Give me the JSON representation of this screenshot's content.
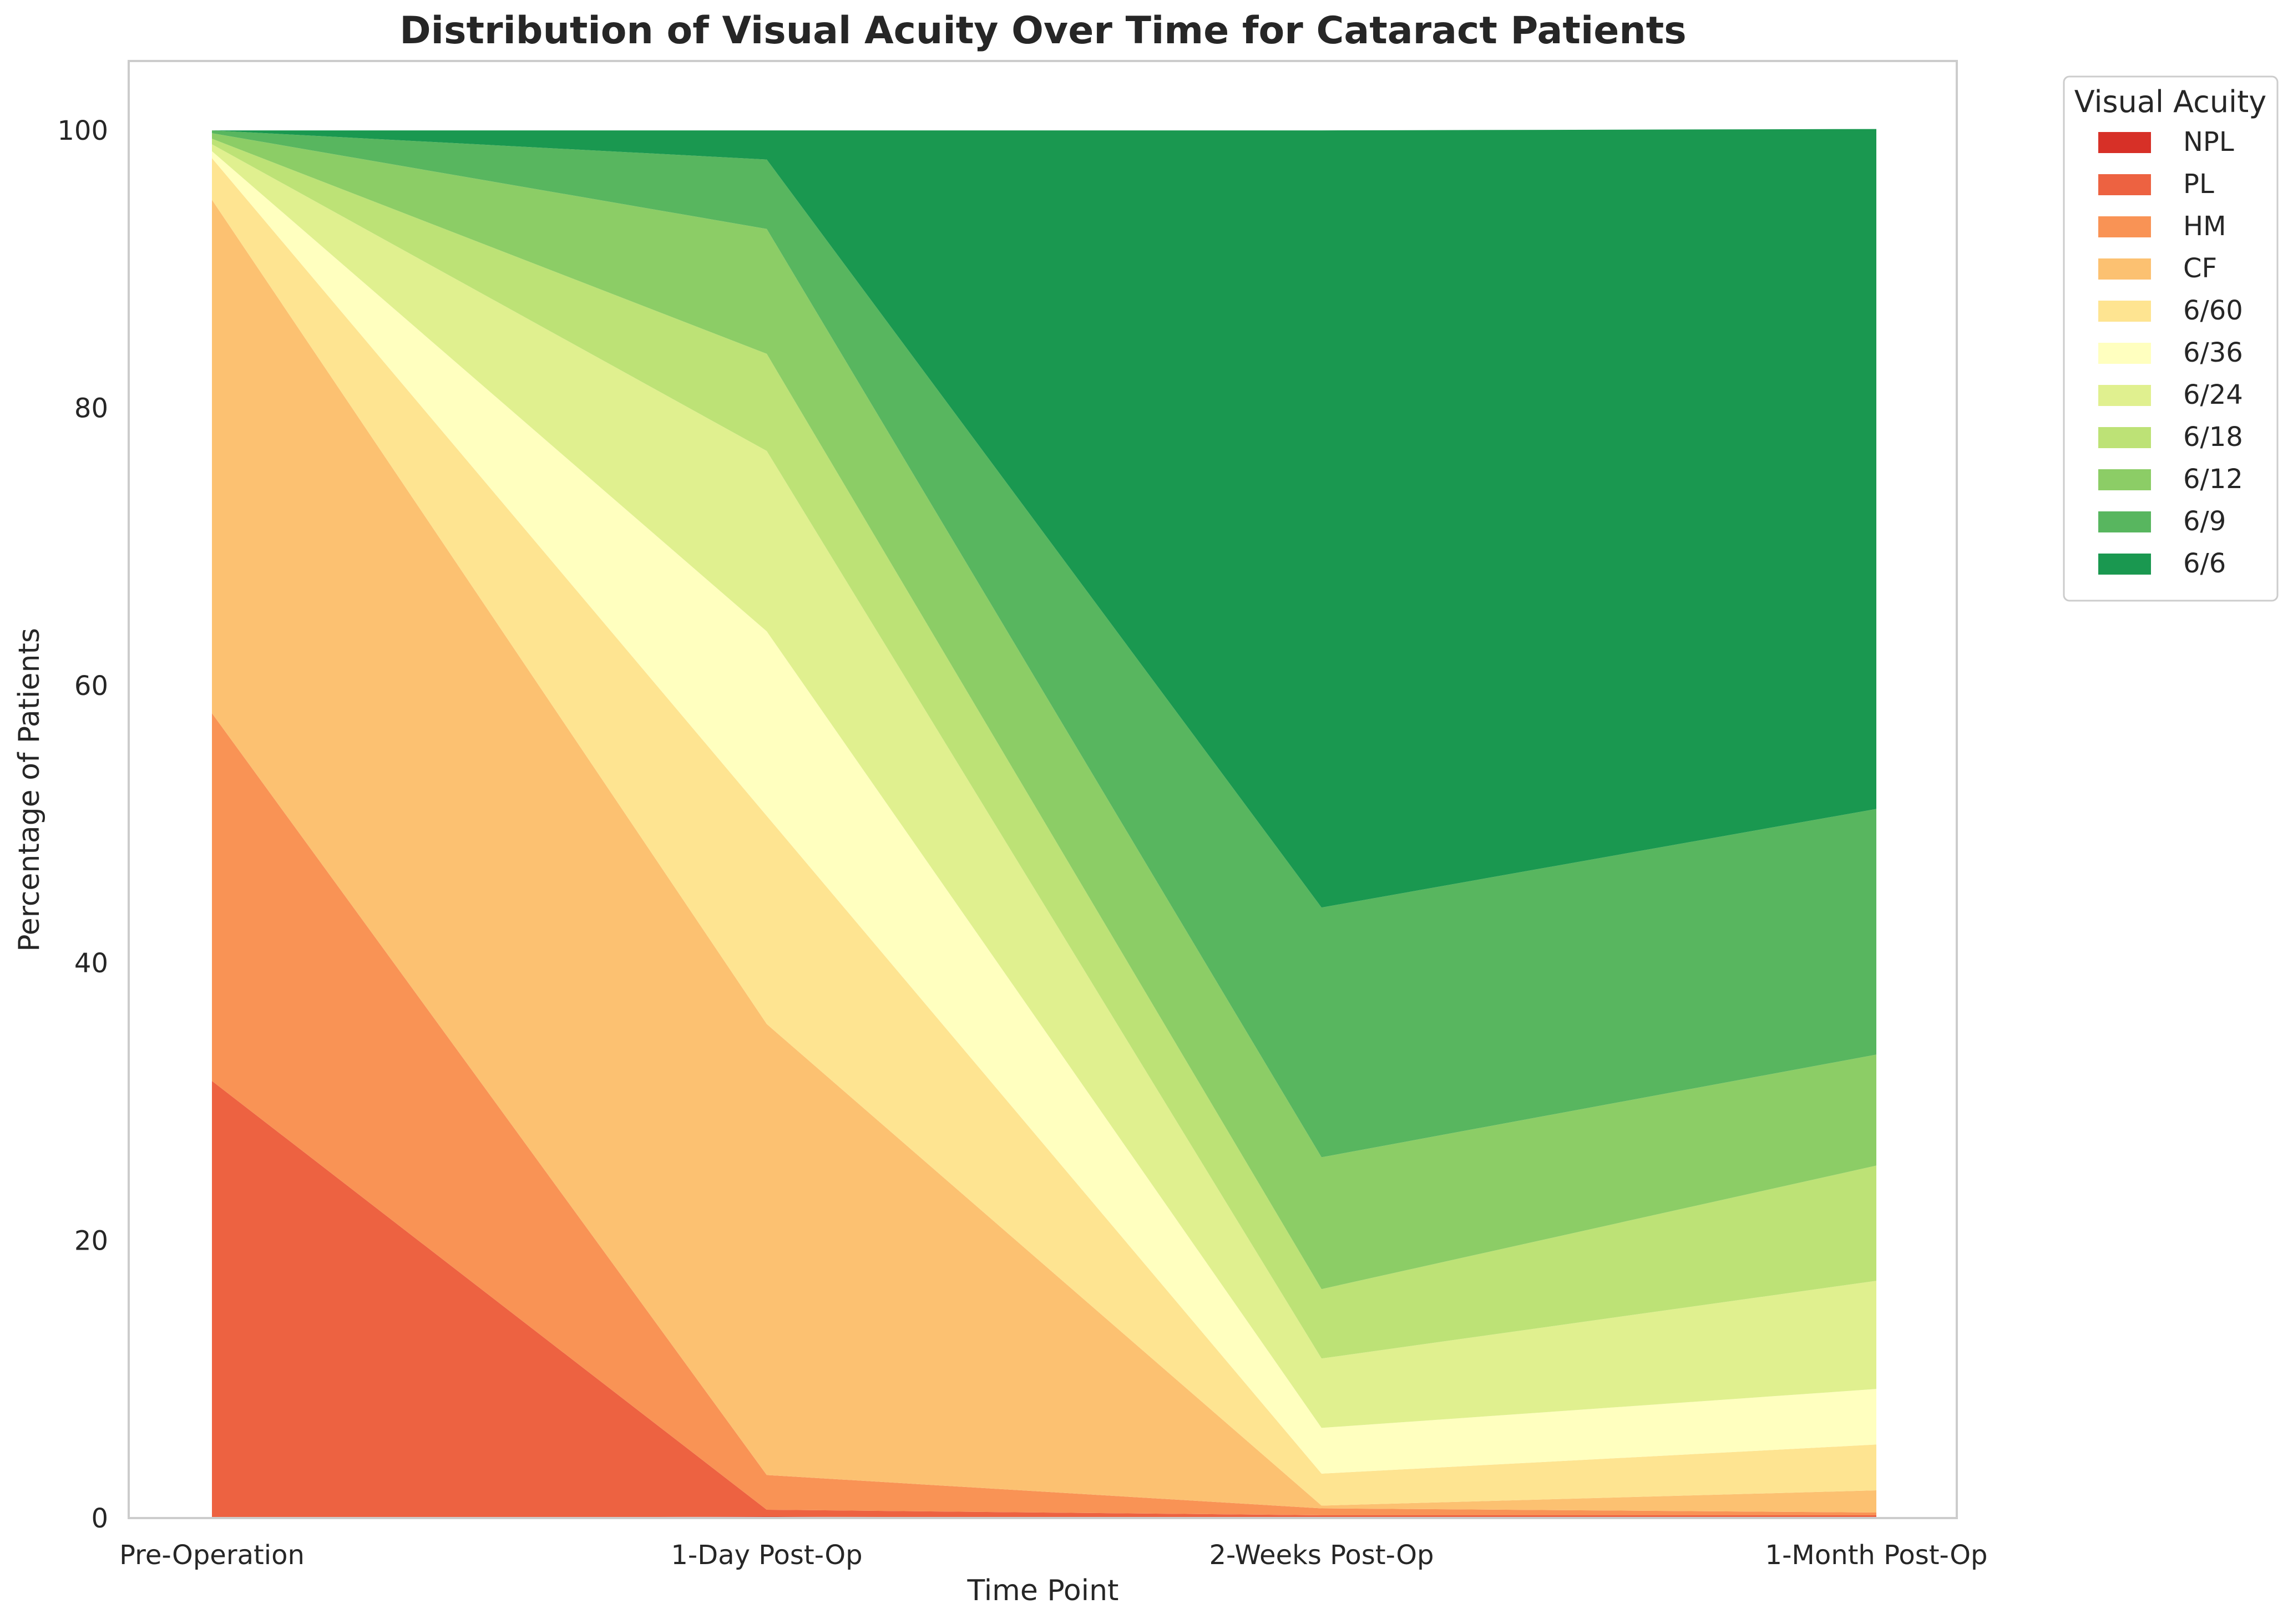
{
  "chart_data": {
    "type": "area",
    "stacked": true,
    "title": "Distribution of Visual Acuity Over Time for Cataract Patients",
    "xlabel": "Time Point",
    "ylabel": "Percentage of Patients",
    "x": [
      "Pre-Operation",
      "1-Day Post-Op",
      "2-Weeks Post-Op",
      "1-Month Post-Op"
    ],
    "ylim": [
      0,
      105
    ],
    "yticks": [
      "0",
      "20",
      "40",
      "60",
      "80",
      "100"
    ],
    "grid": false,
    "legend_title": "Visual Acuity",
    "legend_position": "outside-upper-right",
    "series": [
      {
        "name": "NPL",
        "color": "#d73027",
        "values": [
          0.0,
          0.1,
          0.0,
          0.0
        ]
      },
      {
        "name": "PL",
        "color": "#ed6241",
        "values": [
          31.5,
          0.5,
          0.2,
          0.2
        ]
      },
      {
        "name": "HM",
        "color": "#f99355",
        "values": [
          26.5,
          2.5,
          0.5,
          0.2
        ]
      },
      {
        "name": "CF",
        "color": "#fcc171",
        "values": [
          37.0,
          32.5,
          0.2,
          1.6
        ]
      },
      {
        "name": "6/60",
        "color": "#fee491",
        "values": [
          3.0,
          15.0,
          2.3,
          3.3
        ]
      },
      {
        "name": "6/36",
        "color": "#ffffbf",
        "values": [
          0.5,
          13.3,
          3.3,
          4.0
        ]
      },
      {
        "name": "6/24",
        "color": "#e0f08f",
        "values": [
          0.5,
          13.0,
          5.0,
          7.8
        ]
      },
      {
        "name": "6/18",
        "color": "#bde276",
        "values": [
          0.4,
          7.0,
          5.0,
          8.3
        ]
      },
      {
        "name": "6/12",
        "color": "#8ccd66",
        "values": [
          0.4,
          9.0,
          9.5,
          8.0
        ]
      },
      {
        "name": "6/9",
        "color": "#58b65f",
        "values": [
          0.2,
          5.0,
          18.0,
          17.7
        ]
      },
      {
        "name": "6/6",
        "color": "#1a9850",
        "values": [
          0.0,
          2.1,
          56.0,
          49.0
        ]
      }
    ]
  }
}
